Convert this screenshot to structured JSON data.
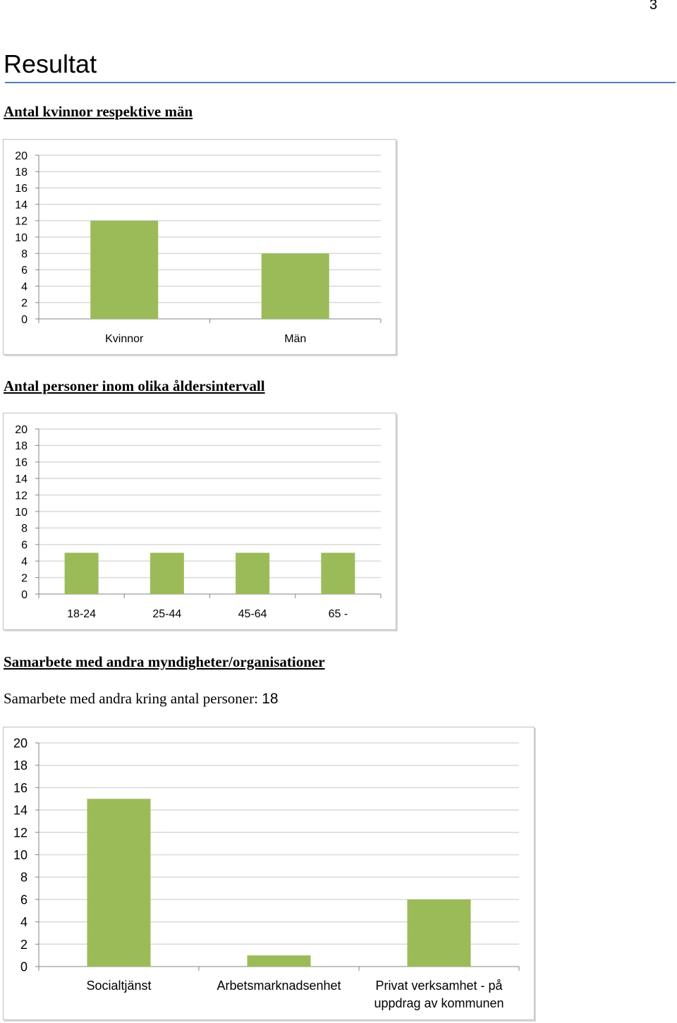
{
  "page_number": "3",
  "heading": "Resultat",
  "sections": {
    "gender": {
      "title": "Antal kvinnor respektive män"
    },
    "age": {
      "title": "Antal personer inom olika åldersintervall"
    },
    "cooperation": {
      "title": "Samarbete med andra myndigheter/organisationer",
      "text": "Samarbete med andra kring antal personer: ",
      "count": "18"
    }
  },
  "colors": {
    "bar": "#9bbb59",
    "grid": "#d9d9d9",
    "axis": "#868686",
    "rule": "#4f81bd"
  },
  "chart_data": [
    {
      "type": "bar",
      "categories": [
        "Kvinnor",
        "Män"
      ],
      "values": [
        12,
        8
      ],
      "ylim": [
        0,
        20
      ],
      "yticks": [
        "0",
        "2",
        "4",
        "6",
        "8",
        "10",
        "12",
        "14",
        "16",
        "18",
        "20"
      ],
      "grid": true,
      "title": "",
      "xlabel": "",
      "ylabel": ""
    },
    {
      "type": "bar",
      "categories": [
        "18-24",
        "25-44",
        "45-64",
        "65 -"
      ],
      "values": [
        5,
        5,
        5,
        5
      ],
      "ylim": [
        0,
        20
      ],
      "yticks": [
        "0",
        "2",
        "4",
        "6",
        "8",
        "10",
        "12",
        "14",
        "16",
        "18",
        "20"
      ],
      "grid": true,
      "title": "",
      "xlabel": "",
      "ylabel": ""
    },
    {
      "type": "bar",
      "categories": [
        [
          "Socialtjänst"
        ],
        [
          "Arbetsmarknadsenhet"
        ],
        [
          "Privat verksamhet - på",
          "uppdrag av kommunen"
        ]
      ],
      "values": [
        15,
        1,
        6
      ],
      "ylim": [
        0,
        20
      ],
      "yticks": [
        "0",
        "2",
        "4",
        "6",
        "8",
        "10",
        "12",
        "14",
        "16",
        "18",
        "20"
      ],
      "grid": true,
      "title": "",
      "xlabel": "",
      "ylabel": ""
    }
  ]
}
